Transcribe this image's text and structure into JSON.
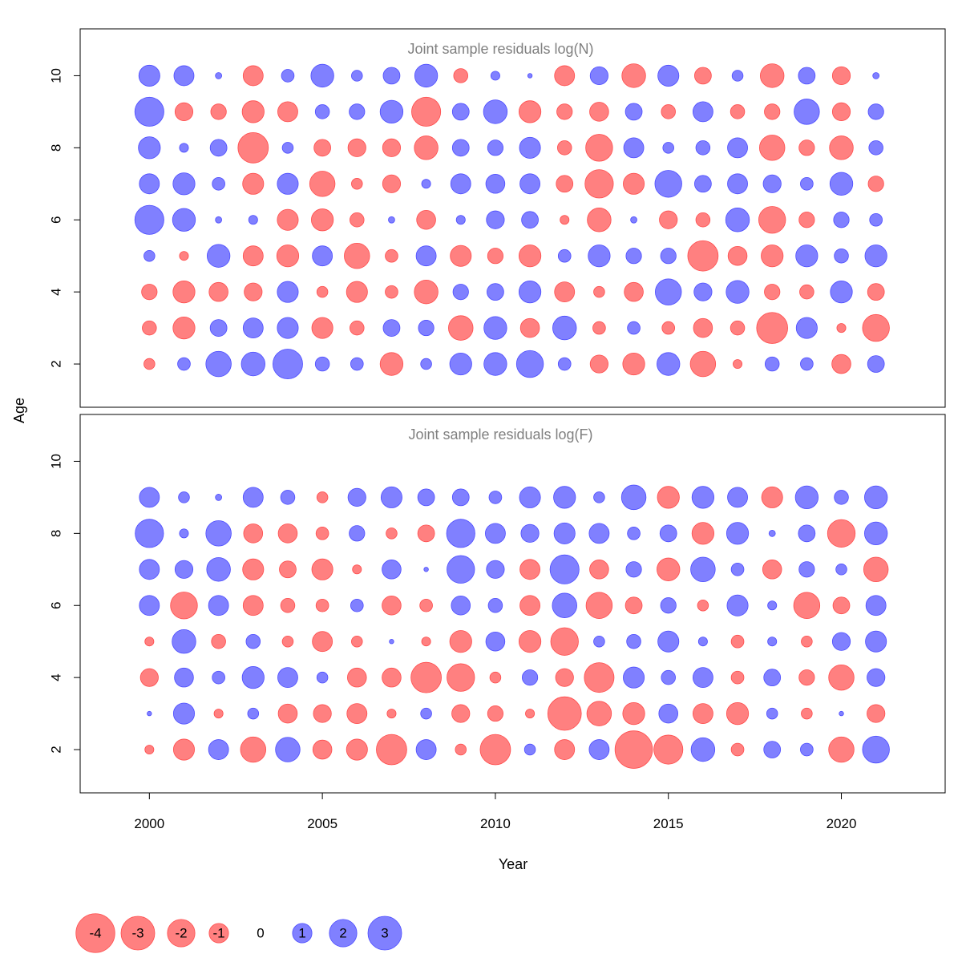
{
  "chart_data": {
    "type": "scatter",
    "subtype": "bubble",
    "xlabel": "Year",
    "ylabel": "Age",
    "xlim": [
      1998,
      2023
    ],
    "ylim": [
      0.8,
      11.3
    ],
    "x_ticks": [
      "2000",
      "2005",
      "2010",
      "2015",
      "2020"
    ],
    "y_ticks": [
      "2",
      "4",
      "6",
      "8",
      "10"
    ],
    "years": [
      2000,
      2001,
      2002,
      2003,
      2004,
      2005,
      2006,
      2007,
      2008,
      2009,
      2010,
      2011,
      2012,
      2013,
      2014,
      2015,
      2016,
      2017,
      2018,
      2019,
      2020,
      2021
    ],
    "colors": {
      "positive": "#8080ff",
      "positive_edge": "#4d4dff",
      "negative": "#ff8080",
      "negative_edge": "#ff4d4d"
    },
    "panels": [
      {
        "title": "Joint sample residuals log(N)",
        "ages": [
          10,
          9,
          8,
          7,
          6,
          5,
          4,
          3,
          2
        ],
        "residuals": [
          [
            1.1,
            1.0,
            0.1,
            -1.0,
            0.4,
            1.3,
            0.3,
            0.7,
            1.3,
            -0.5,
            0.2,
            0.05,
            -1.0,
            0.8,
            -1.4,
            1.1,
            -0.7,
            0.3,
            -1.4,
            0.7,
            -0.8,
            0.1
          ],
          [
            2.1,
            -0.8,
            -0.6,
            -1.2,
            -1.0,
            0.5,
            0.6,
            1.3,
            -2.1,
            0.7,
            1.4,
            -1.2,
            -0.6,
            -0.9,
            0.7,
            -0.5,
            1.0,
            -0.5,
            -0.6,
            1.6,
            -0.8,
            0.6
          ],
          [
            1.2,
            0.2,
            0.7,
            -2.3,
            0.3,
            -0.7,
            -0.8,
            -0.8,
            -1.4,
            0.7,
            0.6,
            1.1,
            -0.5,
            -1.8,
            1.0,
            0.3,
            0.5,
            1.0,
            -1.6,
            -0.6,
            -1.4,
            0.5
          ],
          [
            1.0,
            1.2,
            0.4,
            -1.1,
            1.1,
            -1.6,
            -0.3,
            -0.8,
            0.2,
            1.0,
            0.9,
            1.0,
            -0.7,
            -2.0,
            -1.1,
            1.8,
            0.7,
            1.0,
            0.8,
            0.4,
            1.3,
            -0.6
          ],
          [
            2.1,
            1.3,
            0.1,
            0.2,
            -1.1,
            -1.2,
            -0.5,
            0.1,
            -0.9,
            0.2,
            0.8,
            0.7,
            -0.2,
            -1.4,
            0.1,
            -0.8,
            -0.5,
            1.4,
            -1.8,
            -0.6,
            0.6,
            0.4
          ],
          [
            0.3,
            -0.2,
            1.3,
            -1.0,
            -1.2,
            1.0,
            -1.6,
            -0.4,
            1.0,
            -1.1,
            -0.6,
            -1.2,
            0.4,
            1.2,
            0.6,
            0.6,
            -2.3,
            -0.9,
            -1.2,
            1.2,
            0.5,
            1.2
          ],
          [
            -0.6,
            -1.2,
            -0.9,
            -0.8,
            1.1,
            -0.3,
            -1.1,
            -0.4,
            -1.4,
            0.6,
            0.7,
            1.2,
            -1.0,
            -0.3,
            -0.9,
            1.7,
            0.8,
            1.3,
            -0.6,
            -0.5,
            1.2,
            -0.7
          ],
          [
            -0.5,
            -1.2,
            0.7,
            1.0,
            1.1,
            -1.1,
            -0.5,
            0.7,
            0.6,
            -1.5,
            1.3,
            -0.9,
            1.4,
            -0.4,
            0.4,
            -0.4,
            -0.9,
            -0.5,
            -2.4,
            1.1,
            -0.2,
            -1.8
          ],
          [
            -0.3,
            0.4,
            1.6,
            1.4,
            2.2,
            0.5,
            0.4,
            -1.3,
            0.3,
            1.2,
            1.3,
            1.8,
            0.4,
            -0.8,
            -1.2,
            1.3,
            -1.6,
            -0.2,
            0.5,
            0.4,
            -0.9,
            0.7
          ]
        ]
      },
      {
        "title": "Joint sample residuals log(F)",
        "ages": [
          9,
          8,
          7,
          6,
          5,
          4,
          3,
          2
        ],
        "residuals": [
          [
            1.0,
            0.3,
            0.1,
            1.0,
            0.5,
            -0.3,
            0.8,
            1.1,
            0.7,
            0.7,
            0.4,
            1.1,
            1.2,
            0.3,
            1.5,
            -1.2,
            1.2,
            1.0,
            -1.1,
            1.3,
            0.5,
            1.3
          ],
          [
            2.0,
            0.2,
            1.6,
            -0.9,
            -0.9,
            -0.4,
            0.6,
            -0.3,
            -0.7,
            2.0,
            1.0,
            0.8,
            1.1,
            1.0,
            0.4,
            0.7,
            -1.2,
            1.2,
            0.1,
            0.7,
            -1.9,
            1.3
          ],
          [
            1.0,
            0.8,
            1.4,
            -1.1,
            -0.7,
            -1.1,
            -0.2,
            0.9,
            0.05,
            1.9,
            0.8,
            -1.0,
            2.1,
            -0.9,
            0.6,
            -1.3,
            1.5,
            0.4,
            -0.9,
            0.6,
            0.3,
            -1.5
          ],
          [
            1.0,
            -1.8,
            1.0,
            -1.0,
            -0.5,
            -0.4,
            0.4,
            -0.9,
            -0.4,
            0.9,
            0.5,
            -1.0,
            1.5,
            -1.7,
            -0.7,
            0.6,
            -0.3,
            1.1,
            0.2,
            -1.7,
            -0.7,
            1.0
          ],
          [
            -0.2,
            1.4,
            -0.5,
            0.5,
            -0.3,
            -1.0,
            -0.3,
            0.05,
            -0.2,
            -1.2,
            0.9,
            -1.2,
            -1.9,
            0.3,
            0.5,
            1.1,
            0.2,
            -0.4,
            0.2,
            -0.3,
            0.8,
            1.1
          ],
          [
            -0.8,
            0.9,
            0.4,
            1.2,
            1.0,
            0.3,
            -0.9,
            -0.9,
            -2.3,
            -1.9,
            -0.3,
            0.6,
            -0.8,
            -2.2,
            1.1,
            0.5,
            1.0,
            -0.4,
            0.7,
            -0.6,
            -1.6,
            0.8
          ],
          [
            0.05,
            1.1,
            -0.2,
            0.3,
            -0.9,
            -0.8,
            -1.0,
            -0.2,
            0.3,
            -0.8,
            -0.6,
            -0.2,
            -2.8,
            -1.5,
            -1.2,
            0.9,
            -1.0,
            -1.2,
            0.3,
            -0.3,
            0.05,
            -0.8
          ],
          [
            -0.2,
            -1.1,
            1.0,
            -1.6,
            1.5,
            -0.9,
            -1.1,
            -2.3,
            1.0,
            -0.3,
            -2.3,
            0.3,
            -1.0,
            1.0,
            -3.5,
            -2.1,
            1.4,
            -0.4,
            0.7,
            0.4,
            -1.6,
            1.8
          ]
        ]
      }
    ],
    "legend": {
      "placement": "bottom",
      "items": [
        {
          "label": "-4",
          "value": -4
        },
        {
          "label": "-3",
          "value": -3
        },
        {
          "label": "-2",
          "value": -2
        },
        {
          "label": "-1",
          "value": -1
        },
        {
          "label": "0",
          "value": 0
        },
        {
          "label": "1",
          "value": 1
        },
        {
          "label": "2",
          "value": 2
        },
        {
          "label": "3",
          "value": 3
        }
      ]
    }
  }
}
